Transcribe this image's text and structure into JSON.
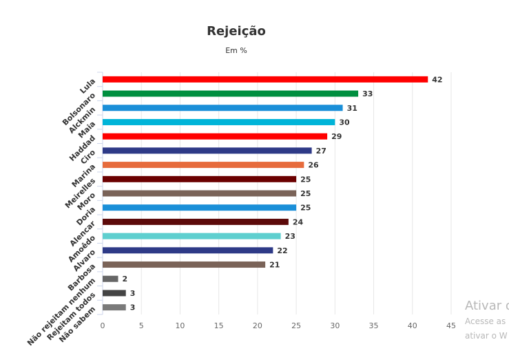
{
  "chart_data": {
    "type": "bar",
    "orientation": "horizontal",
    "title": "Rejeição",
    "subtitle": "Em %",
    "categories": [
      "Lula",
      "Bolsonaro",
      "Alckmin",
      "Maia",
      "Haddad",
      "Ciro",
      "Marina",
      "Meirelles",
      "Moro",
      "Doria",
      "Alencar",
      "Amoêdo",
      "Alvaro",
      "Barbosa",
      "Não rejeitam nenhum",
      "Rejeitam todos",
      "Não sabem"
    ],
    "values": [
      42,
      33,
      31,
      30,
      29,
      27,
      26,
      25,
      25,
      25,
      24,
      23,
      22,
      21,
      2,
      3,
      3
    ],
    "colors": [
      "#ff0000",
      "#008f3f",
      "#1a8fd8",
      "#00b4d8",
      "#ff0000",
      "#2e3a87",
      "#e66b3c",
      "#6b0000",
      "#7a6358",
      "#1a8fd8",
      "#5c0a0a",
      "#5ecfcf",
      "#2e3a87",
      "#7a6358",
      "#666666",
      "#444444",
      "#7a7a7a"
    ],
    "xlim": [
      0,
      45
    ],
    "xticks": [
      0,
      5,
      10,
      15,
      20,
      25,
      30,
      35,
      40,
      45
    ],
    "grid": true,
    "data_labels": true,
    "legend": "none"
  },
  "watermark": {
    "title": "Ativar o",
    "line1": "Acesse as",
    "line2": "ativar o W"
  }
}
